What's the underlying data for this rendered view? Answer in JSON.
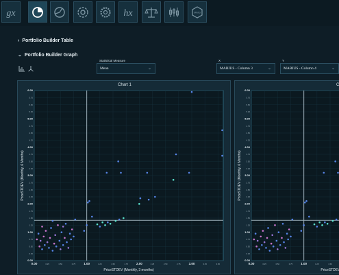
{
  "toolbar": {
    "buttons": [
      {
        "icon": "gx-icon",
        "label": "gx"
      },
      {
        "icon": "pie-chart-icon",
        "label": ""
      },
      {
        "icon": "globe-chart-icon",
        "label": ""
      },
      {
        "icon": "refresh-gear-icon",
        "label": ""
      },
      {
        "icon": "settings-gear-icon",
        "label": ""
      },
      {
        "icon": "hx-icon",
        "label": "hx"
      },
      {
        "icon": "balance-scale-icon",
        "label": ""
      },
      {
        "icon": "candlestick-icon",
        "label": ""
      },
      {
        "icon": "badge-icon",
        "label": "MMG"
      }
    ]
  },
  "sections": {
    "table": "Portfolio Builder Table",
    "graph": "Portfolio Builder Graph"
  },
  "controls": {
    "measure_label": "Statistical Measure",
    "measure_value": "Mean",
    "x_label": "X",
    "x_value": "MARIUS - Column 3",
    "y_label": "Y",
    "y_value": "MARIUS - Column 4"
  },
  "chart_data": [
    {
      "type": "scatter",
      "title": "Chart 1",
      "xlabel": "PriceSTDEV  (Monthly, 3 months)",
      "ylabel": "PriceSTDEV  (Monthly, 6 Months)",
      "xlim": [
        0,
        3.6
      ],
      "ylim": [
        0,
        6
      ],
      "x_ticks": [
        "0.00",
        "0.25",
        "0.50",
        "0.75",
        "1.00",
        "1.25",
        "1.50",
        "1.75",
        "2.00",
        "2.25",
        "2.50",
        "2.75",
        "3.00",
        "3.25",
        "3.50"
      ],
      "y_ticks": [
        "0.00",
        "0.25",
        "0.50",
        "0.75",
        "1.00",
        "1.25",
        "1.50",
        "1.75",
        "2.00",
        "2.25",
        "2.50",
        "2.75",
        "3.00",
        "3.25",
        "3.50",
        "3.75",
        "4.00",
        "4.25",
        "4.50",
        "4.75",
        "5.00",
        "5.25",
        "5.50",
        "5.75",
        "6.00"
      ],
      "vline_x": 1.0,
      "hline_y": 1.42,
      "points": [
        {
          "x": 0.05,
          "y": 0.75,
          "c": "#d27ad6"
        },
        {
          "x": 0.08,
          "y": 0.95,
          "c": "#5b8af0"
        },
        {
          "x": 0.1,
          "y": 0.5,
          "c": "#d27ad6"
        },
        {
          "x": 0.12,
          "y": 0.7,
          "c": "#a07ae0"
        },
        {
          "x": 0.15,
          "y": 0.4,
          "c": "#5b8af0"
        },
        {
          "x": 0.18,
          "y": 0.85,
          "c": "#d27ad6"
        },
        {
          "x": 0.2,
          "y": 0.55,
          "c": "#5b8af0"
        },
        {
          "x": 0.22,
          "y": 1.05,
          "c": "#d27ad6"
        },
        {
          "x": 0.25,
          "y": 0.65,
          "c": "#a07ae0"
        },
        {
          "x": 0.28,
          "y": 0.45,
          "c": "#5b8af0"
        },
        {
          "x": 0.3,
          "y": 0.8,
          "c": "#d27ad6"
        },
        {
          "x": 0.32,
          "y": 1.15,
          "c": "#5b8af0"
        },
        {
          "x": 0.35,
          "y": 0.35,
          "c": "#5b8af0"
        },
        {
          "x": 0.38,
          "y": 0.6,
          "c": "#d27ad6"
        },
        {
          "x": 0.4,
          "y": 0.9,
          "c": "#a07ae0"
        },
        {
          "x": 0.42,
          "y": 0.5,
          "c": "#5b8af0"
        },
        {
          "x": 0.45,
          "y": 1.25,
          "c": "#d27ad6"
        },
        {
          "x": 0.48,
          "y": 0.7,
          "c": "#5b8af0"
        },
        {
          "x": 0.5,
          "y": 0.4,
          "c": "#a07ae0"
        },
        {
          "x": 0.52,
          "y": 1.0,
          "c": "#5b8af0"
        },
        {
          "x": 0.55,
          "y": 0.55,
          "c": "#5b8af0"
        },
        {
          "x": 0.58,
          "y": 0.8,
          "c": "#d27ad6"
        },
        {
          "x": 0.6,
          "y": 1.3,
          "c": "#5b8af0"
        },
        {
          "x": 0.62,
          "y": 0.65,
          "c": "#5b8af0"
        },
        {
          "x": 0.65,
          "y": 0.45,
          "c": "#a07ae0"
        },
        {
          "x": 0.68,
          "y": 0.95,
          "c": "#5b8af0"
        },
        {
          "x": 0.7,
          "y": 0.75,
          "c": "#5b8af0"
        },
        {
          "x": 0.72,
          "y": 1.1,
          "c": "#d27ad6"
        },
        {
          "x": 0.75,
          "y": 0.85,
          "c": "#5b8af0"
        },
        {
          "x": 0.78,
          "y": 1.45,
          "c": "#5b8af0"
        },
        {
          "x": 0.15,
          "y": 1.2,
          "c": "#d27ad6"
        },
        {
          "x": 0.35,
          "y": 1.4,
          "c": "#5b8af0"
        },
        {
          "x": 0.55,
          "y": 1.2,
          "c": "#a07ae0"
        },
        {
          "x": 0.95,
          "y": 1.05,
          "c": "#5b8af0"
        },
        {
          "x": 1.0,
          "y": 1.25,
          "c": "#5b8af0"
        },
        {
          "x": 1.02,
          "y": 2.05,
          "c": "#5b8af0"
        },
        {
          "x": 1.05,
          "y": 2.1,
          "c": "#5b8af0"
        },
        {
          "x": 1.1,
          "y": 1.55,
          "c": "#5b8af0"
        },
        {
          "x": 1.2,
          "y": 1.28,
          "c": "#5eead4"
        },
        {
          "x": 1.25,
          "y": 1.2,
          "c": "#5b8af0"
        },
        {
          "x": 1.3,
          "y": 1.35,
          "c": "#5eead4"
        },
        {
          "x": 1.35,
          "y": 1.25,
          "c": "#5eead4"
        },
        {
          "x": 1.38,
          "y": 3.1,
          "c": "#5b8af0"
        },
        {
          "x": 1.4,
          "y": 1.35,
          "c": "#5b8af0"
        },
        {
          "x": 1.45,
          "y": 1.3,
          "c": "#5eead4"
        },
        {
          "x": 1.55,
          "y": 1.4,
          "c": "#5eead4"
        },
        {
          "x": 1.6,
          "y": 3.5,
          "c": "#5b8af0"
        },
        {
          "x": 1.62,
          "y": 1.45,
          "c": "#5b8af0"
        },
        {
          "x": 1.65,
          "y": 3.1,
          "c": "#5b8af0"
        },
        {
          "x": 1.7,
          "y": 1.5,
          "c": "#5eead4"
        },
        {
          "x": 2.0,
          "y": 2.0,
          "c": "#5eead4"
        },
        {
          "x": 2.02,
          "y": 2.2,
          "c": "#5b8af0"
        },
        {
          "x": 2.15,
          "y": 3.1,
          "c": "#5b8af0"
        },
        {
          "x": 2.18,
          "y": 2.15,
          "c": "#5b8af0"
        },
        {
          "x": 2.3,
          "y": 2.25,
          "c": "#5b8af0"
        },
        {
          "x": 2.65,
          "y": 2.85,
          "c": "#5eead4"
        },
        {
          "x": 2.7,
          "y": 3.75,
          "c": "#5b8af0"
        },
        {
          "x": 2.95,
          "y": 3.1,
          "c": "#5b8af0"
        },
        {
          "x": 3.0,
          "y": 5.95,
          "c": "#5b8af0"
        },
        {
          "x": 3.58,
          "y": 4.6,
          "c": "#5b8af0"
        },
        {
          "x": 3.58,
          "y": 3.7,
          "c": "#5b8af0"
        }
      ]
    },
    {
      "type": "scatter",
      "title": "Ch",
      "xlabel": "PriceSTDEV  (Monthly, 3 months)",
      "ylabel": "PriceSTDEV  (Monthly, 6 Months)",
      "xlim": [
        0,
        3.6
      ],
      "ylim": [
        0,
        6
      ],
      "x_ticks": [
        "0.00",
        "0.25",
        "0.50",
        "0.75",
        "1.00",
        "1.25",
        "1.50",
        "1.75"
      ],
      "y_ticks": [
        "0.00",
        "0.25",
        "0.50",
        "0.75",
        "1.00",
        "1.25",
        "1.50",
        "1.75",
        "2.00",
        "2.25",
        "2.50",
        "2.75",
        "3.00",
        "3.25",
        "3.50",
        "3.75",
        "4.00",
        "4.25",
        "4.50",
        "4.75",
        "5.00",
        "5.25",
        "5.50",
        "5.75",
        "6.00"
      ],
      "vline_x": 1.0,
      "hline_y": 1.42,
      "points": [
        {
          "x": 0.05,
          "y": 0.75,
          "c": "#d27ad6"
        },
        {
          "x": 0.08,
          "y": 0.95,
          "c": "#5b8af0"
        },
        {
          "x": 0.1,
          "y": 0.5,
          "c": "#d27ad6"
        },
        {
          "x": 0.12,
          "y": 0.7,
          "c": "#a07ae0"
        },
        {
          "x": 0.15,
          "y": 0.4,
          "c": "#5b8af0"
        },
        {
          "x": 0.18,
          "y": 0.85,
          "c": "#d27ad6"
        },
        {
          "x": 0.2,
          "y": 0.55,
          "c": "#5b8af0"
        },
        {
          "x": 0.22,
          "y": 1.05,
          "c": "#d27ad6"
        },
        {
          "x": 0.25,
          "y": 0.65,
          "c": "#a07ae0"
        },
        {
          "x": 0.28,
          "y": 0.45,
          "c": "#5b8af0"
        },
        {
          "x": 0.3,
          "y": 0.8,
          "c": "#d27ad6"
        },
        {
          "x": 0.32,
          "y": 1.15,
          "c": "#5b8af0"
        },
        {
          "x": 0.35,
          "y": 0.35,
          "c": "#5b8af0"
        },
        {
          "x": 0.38,
          "y": 0.6,
          "c": "#d27ad6"
        },
        {
          "x": 0.4,
          "y": 0.9,
          "c": "#a07ae0"
        },
        {
          "x": 0.42,
          "y": 0.5,
          "c": "#5b8af0"
        },
        {
          "x": 0.45,
          "y": 1.25,
          "c": "#d27ad6"
        },
        {
          "x": 0.48,
          "y": 0.7,
          "c": "#5b8af0"
        },
        {
          "x": 0.5,
          "y": 0.4,
          "c": "#a07ae0"
        },
        {
          "x": 0.52,
          "y": 1.0,
          "c": "#5b8af0"
        },
        {
          "x": 0.55,
          "y": 0.55,
          "c": "#5b8af0"
        },
        {
          "x": 0.58,
          "y": 0.8,
          "c": "#d27ad6"
        },
        {
          "x": 0.6,
          "y": 1.3,
          "c": "#5b8af0"
        },
        {
          "x": 0.62,
          "y": 0.65,
          "c": "#5b8af0"
        },
        {
          "x": 0.65,
          "y": 0.45,
          "c": "#a07ae0"
        },
        {
          "x": 0.68,
          "y": 0.95,
          "c": "#5b8af0"
        },
        {
          "x": 0.7,
          "y": 0.75,
          "c": "#5b8af0"
        },
        {
          "x": 0.72,
          "y": 1.1,
          "c": "#d27ad6"
        },
        {
          "x": 0.75,
          "y": 0.85,
          "c": "#5b8af0"
        },
        {
          "x": 0.78,
          "y": 1.45,
          "c": "#5b8af0"
        },
        {
          "x": 0.95,
          "y": 1.05,
          "c": "#5b8af0"
        },
        {
          "x": 1.0,
          "y": 1.25,
          "c": "#5b8af0"
        },
        {
          "x": 1.02,
          "y": 2.05,
          "c": "#5b8af0"
        },
        {
          "x": 1.05,
          "y": 2.1,
          "c": "#5b8af0"
        },
        {
          "x": 1.1,
          "y": 1.55,
          "c": "#5b8af0"
        },
        {
          "x": 1.2,
          "y": 1.28,
          "c": "#5eead4"
        },
        {
          "x": 1.25,
          "y": 1.2,
          "c": "#5b8af0"
        },
        {
          "x": 1.3,
          "y": 1.35,
          "c": "#5eead4"
        },
        {
          "x": 1.35,
          "y": 1.25,
          "c": "#5eead4"
        },
        {
          "x": 1.38,
          "y": 3.1,
          "c": "#5b8af0"
        },
        {
          "x": 1.4,
          "y": 1.35,
          "c": "#5b8af0"
        },
        {
          "x": 1.45,
          "y": 1.3,
          "c": "#5eead4"
        },
        {
          "x": 1.55,
          "y": 1.4,
          "c": "#5eead4"
        },
        {
          "x": 1.6,
          "y": 3.5,
          "c": "#5b8af0"
        },
        {
          "x": 1.62,
          "y": 1.45,
          "c": "#5b8af0"
        },
        {
          "x": 1.65,
          "y": 3.1,
          "c": "#5b8af0"
        },
        {
          "x": 1.7,
          "y": 1.5,
          "c": "#5eead4"
        }
      ]
    }
  ]
}
